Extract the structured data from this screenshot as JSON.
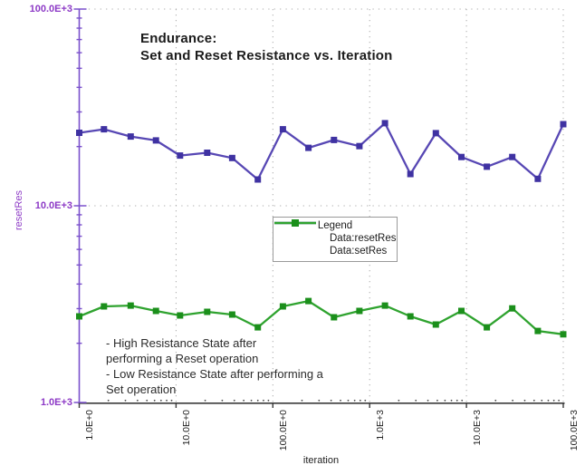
{
  "title": {
    "line1": "Endurance:",
    "line2": "Set and Reset Resistance vs. Iteration"
  },
  "axes": {
    "y": {
      "title": "resetRes",
      "tick_labels": [
        "100.0E+3",
        "10.0E+3",
        "1.0E+3"
      ]
    },
    "x": {
      "title": "iteration",
      "tick_labels": [
        "1.0E+0",
        "10.0E+0",
        "100.0E+0",
        "1.0E+3",
        "10.0E+3",
        "100.0E+3"
      ]
    }
  },
  "legend": {
    "title": "Legend",
    "entries": [
      {
        "label": "Data:resetRes"
      },
      {
        "label": "Data:setRes"
      }
    ]
  },
  "annotation": {
    "lines": [
      "- High Resistance State after",
      "performing a Reset operation",
      "- Low Resistance State after performing a",
      "Set operation"
    ]
  },
  "colors": {
    "y_axis": "#7a50cc",
    "y_axis_text": "#8d3ac6",
    "x_axis": "#3a3a3a",
    "x_axis_text": "#222222",
    "grid": "#a9a9a9",
    "reset_line": "#5747b4",
    "reset_marker": "#3f32a2",
    "set_line": "#2fa32f",
    "set_marker": "#1b8f1b"
  },
  "chart_data": {
    "type": "line",
    "title": "Endurance: Set and Reset Resistance vs. Iteration",
    "xlabel": "iteration",
    "ylabel": "resetRes",
    "x_scale": "log",
    "y_scale": "log",
    "xlim": [
      1,
      100000
    ],
    "ylim": [
      1000,
      100000
    ],
    "x_ticks": [
      1,
      10,
      100,
      1000,
      10000,
      100000
    ],
    "y_ticks": [
      1000,
      10000,
      100000
    ],
    "grid": "dotted",
    "legend_position": "center",
    "x": [
      1,
      1.8,
      3.4,
      6.2,
      11,
      21,
      38,
      70,
      127,
      233,
      428,
      784,
      1438,
      2637,
      4833,
      8859,
      16238,
      29764,
      54556,
      100000
    ],
    "series": [
      {
        "name": "Data:resetRes",
        "values": [
          23500,
          24500,
          22500,
          21500,
          18000,
          18600,
          17500,
          13600,
          24500,
          19700,
          21600,
          20100,
          26300,
          14500,
          23400,
          17700,
          15800,
          17700,
          13700,
          26000
        ]
      },
      {
        "name": "Data:setRes",
        "values": [
          2740,
          3080,
          3110,
          2920,
          2770,
          2890,
          2800,
          2410,
          3080,
          3280,
          2710,
          2920,
          3110,
          2740,
          2490,
          2920,
          2410,
          3010,
          2310,
          2220
        ]
      }
    ]
  }
}
